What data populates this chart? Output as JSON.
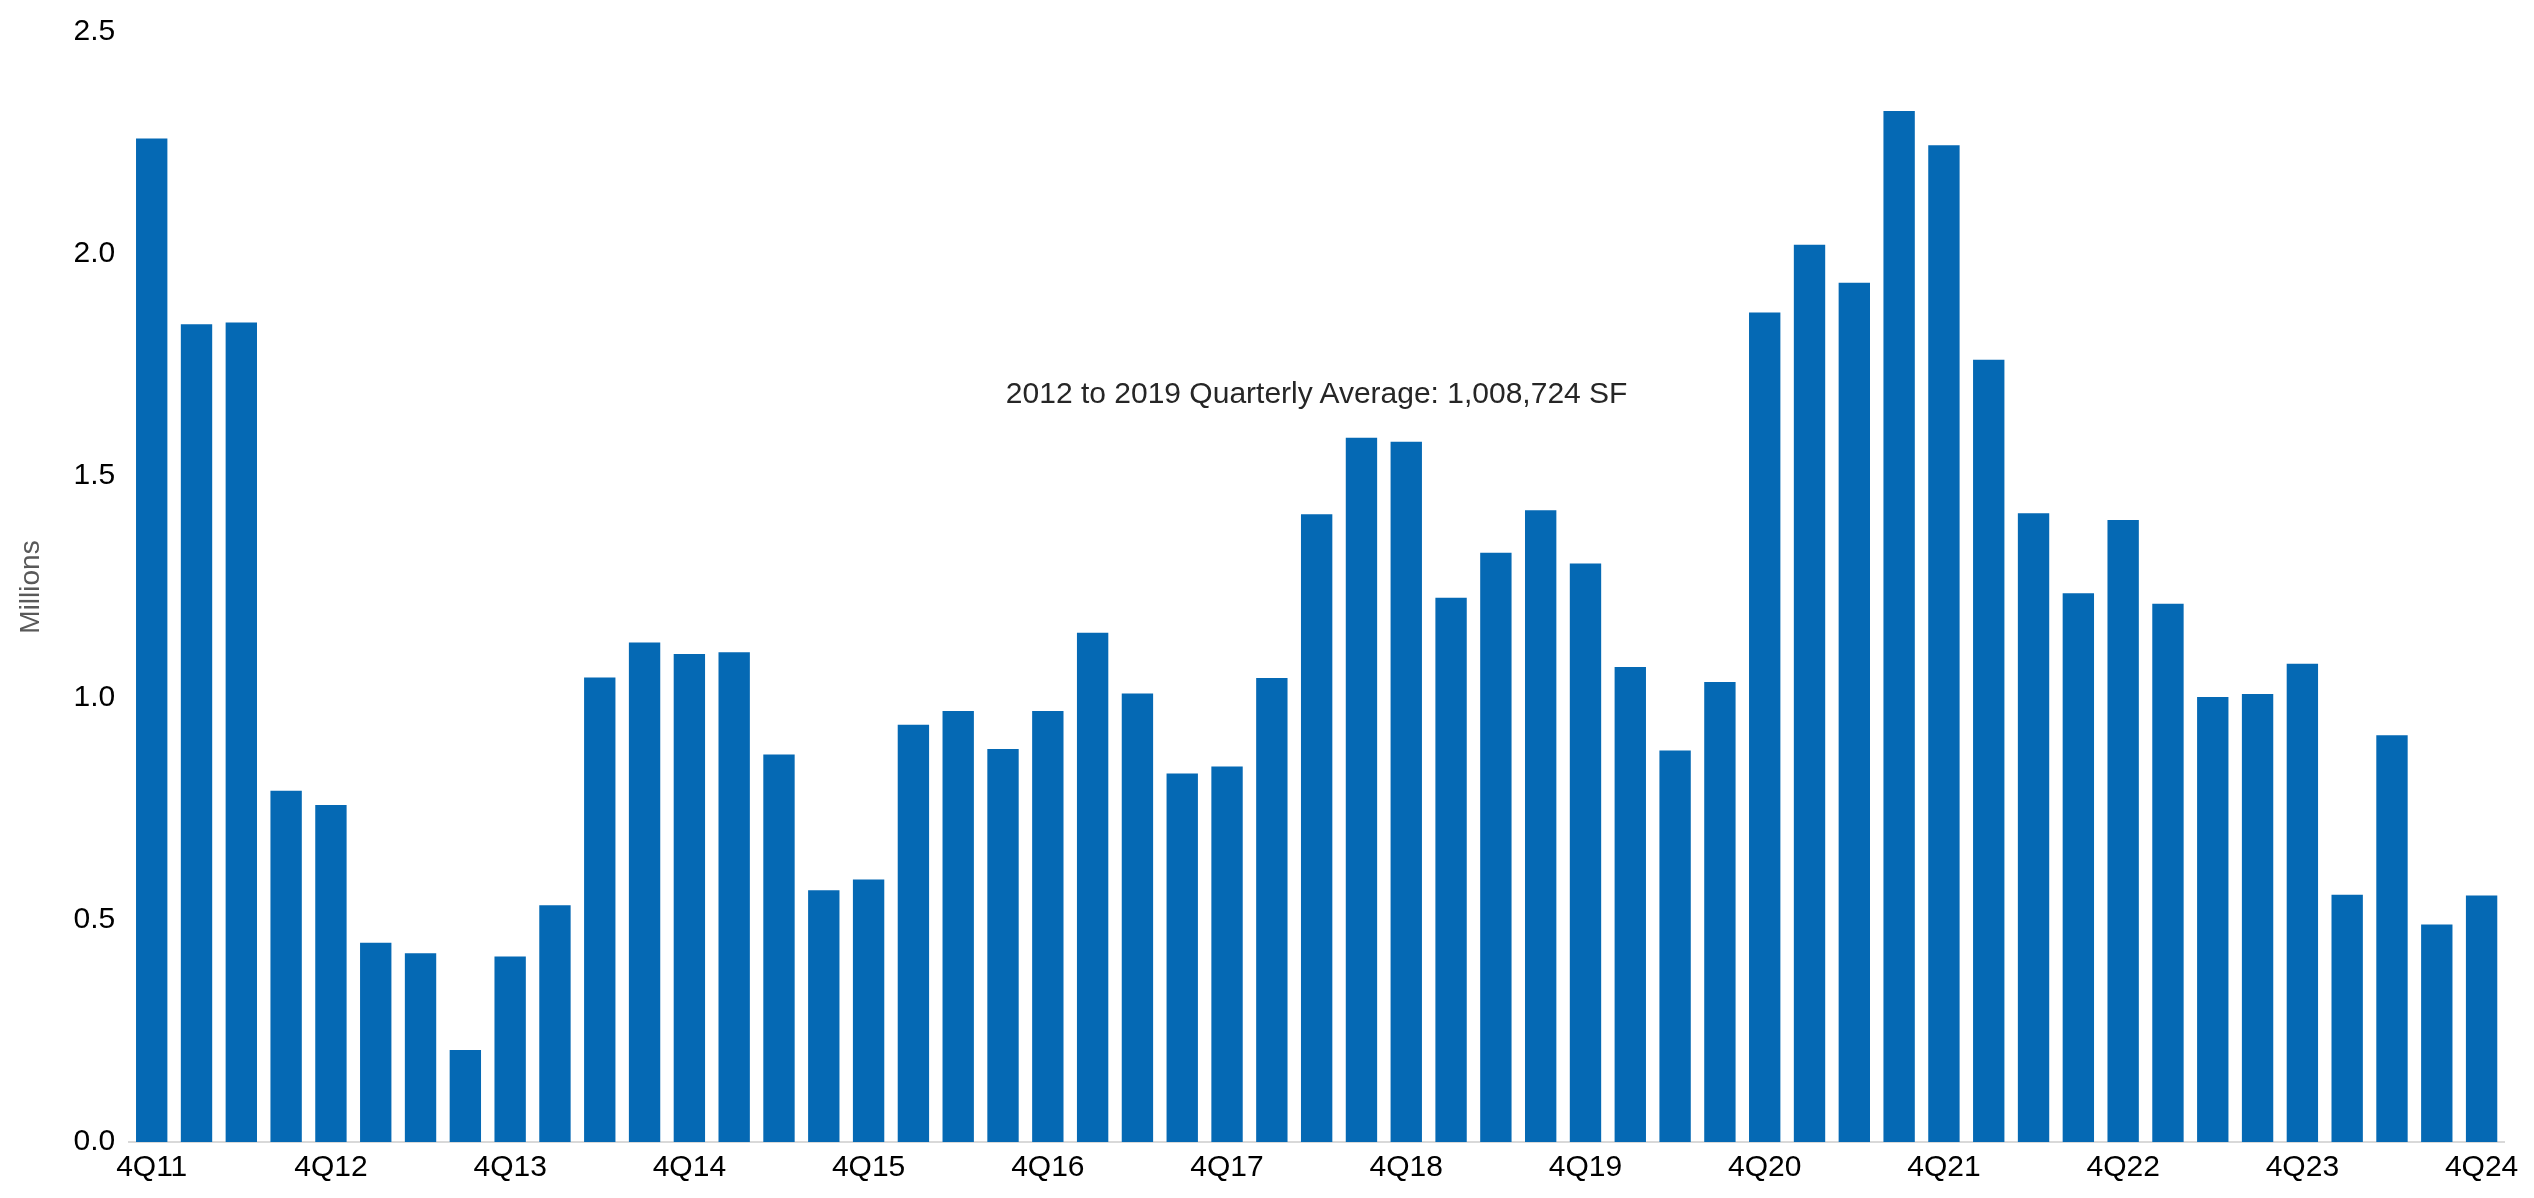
{
  "chart_data": {
    "type": "bar",
    "ylabel": "Millions",
    "annotations": [
      "2012 to 2019 Quarterly Average: 1,008,724 SF"
    ],
    "categories": [
      "4Q11",
      null,
      null,
      null,
      "4Q12",
      null,
      null,
      null,
      "4Q13",
      null,
      null,
      null,
      "4Q14",
      null,
      null,
      null,
      "4Q15",
      null,
      null,
      null,
      "4Q16",
      null,
      null,
      null,
      "4Q17",
      null,
      null,
      null,
      "4Q18",
      null,
      null,
      null,
      "4Q19",
      null,
      null,
      null,
      "4Q20",
      null,
      null,
      null,
      "4Q21",
      null,
      null,
      null,
      "4Q22",
      null,
      null,
      null,
      "4Q23",
      null,
      null,
      null,
      "4Q24"
    ],
    "values": [
      2.26,
      1.842,
      1.846,
      0.791,
      0.759,
      0.449,
      0.425,
      0.207,
      0.418,
      0.533,
      1.046,
      1.125,
      1.099,
      1.103,
      0.873,
      0.567,
      0.591,
      0.94,
      0.971,
      0.885,
      0.971,
      1.147,
      1.01,
      0.83,
      0.846,
      1.045,
      1.414,
      1.586,
      1.577,
      1.226,
      1.327,
      1.423,
      1.303,
      1.07,
      0.882,
      1.036,
      1.868,
      2.021,
      1.935,
      2.322,
      2.245,
      1.762,
      1.416,
      1.236,
      1.401,
      1.212,
      1.002,
      1.009,
      1.077,
      0.557,
      0.916,
      0.49,
      0.555
    ],
    "color": "#0569b4",
    "ylim": [
      0,
      2.5
    ],
    "yticks": [
      {
        "value": 0,
        "label": "0.0"
      },
      0.5,
      {
        "value": 1,
        "label": "1.0"
      },
      1.5,
      {
        "value": 2,
        "label": "2.0"
      },
      2.5
    ],
    "grid": false
  }
}
